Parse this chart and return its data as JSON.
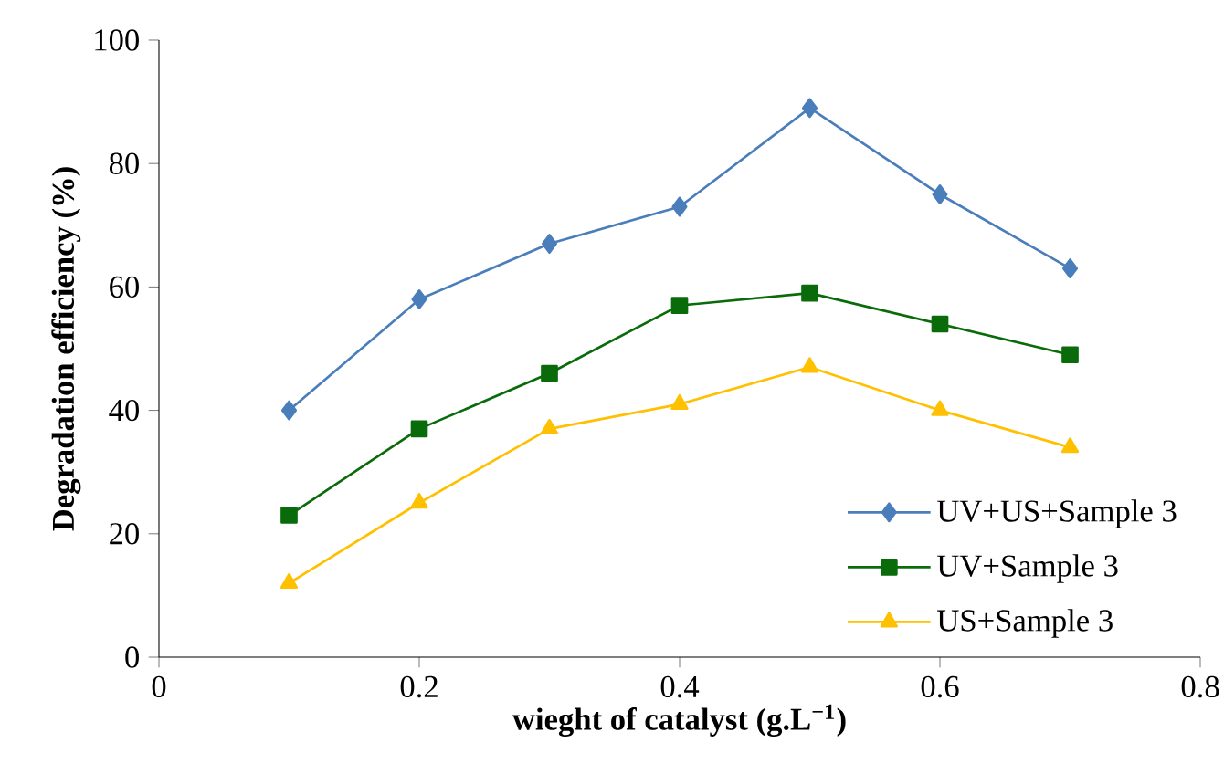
{
  "chart_data": {
    "type": "line",
    "xlabel": "wieght of catalyst (g.L$^{−1}$)",
    "ylabel": "Degradation efficiency (%)",
    "x": [
      0.1,
      0.2,
      0.3,
      0.4,
      0.5,
      0.6,
      0.7
    ],
    "xlim": [
      0,
      0.8
    ],
    "xticks": [
      0,
      0.2,
      0.4,
      0.6,
      0.8
    ],
    "ylim": [
      0,
      100
    ],
    "yticks": [
      0,
      20,
      40,
      60,
      80,
      100
    ],
    "legend": "bottom right",
    "grid": false,
    "line_style": "solid",
    "series": [
      {
        "name": "UV+US+Sample 3",
        "color": "#4a7ebb",
        "marker": "diamond",
        "values": [
          40,
          58,
          67,
          73,
          89,
          75,
          63
        ]
      },
      {
        "name": "UV+Sample 3",
        "color": "#0a6b0a",
        "marker": "square",
        "values": [
          23,
          37,
          46,
          57,
          59,
          54,
          49
        ]
      },
      {
        "name": "US+Sample 3",
        "color": "#ffc000",
        "marker": "triangle",
        "values": [
          12,
          25,
          37,
          41,
          47,
          40,
          34
        ]
      }
    ]
  }
}
